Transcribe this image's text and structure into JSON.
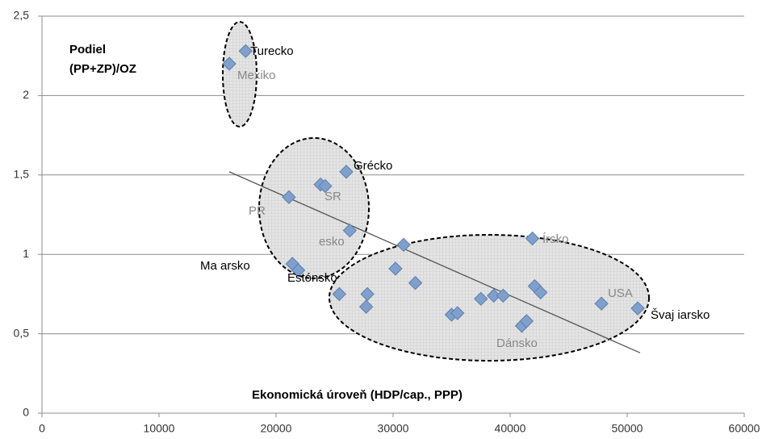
{
  "chart_data": {
    "type": "scatter",
    "y_label": "Podiel\n(PP+ZP)/OZ",
    "x_label": "Ekonomická úroveň (HDP/cap., PPP)",
    "color": "#7f9fcc",
    "x": [
      16000,
      17400,
      21100,
      23800,
      24200,
      26000,
      26300,
      21400,
      21900,
      25400,
      27800,
      27700,
      30900,
      30200,
      31900,
      35000,
      35500,
      37500,
      38600,
      39400,
      41000,
      41400,
      41900,
      42100,
      42600,
      47800,
      50900
    ],
    "values": [
      2.2,
      2.28,
      1.36,
      1.44,
      1.43,
      1.52,
      1.15,
      0.94,
      0.9,
      0.75,
      0.75,
      0.67,
      1.06,
      0.91,
      0.82,
      0.62,
      0.63,
      0.72,
      0.74,
      0.74,
      0.55,
      0.58,
      1.1,
      0.8,
      0.76,
      0.69,
      0.66
    ],
    "trendline": {
      "x": [
        16000,
        51100
      ],
      "values": [
        1.52,
        0.38
      ]
    },
    "xlim": [
      0,
      60000
    ],
    "ylim": [
      0,
      2.5
    ],
    "xticks": [
      0,
      10000,
      20000,
      30000,
      40000,
      50000,
      60000
    ],
    "yticks": [
      0,
      {
        "value": 0.5,
        "label": "0,5"
      },
      1,
      {
        "value": 1.5,
        "label": "1,5"
      },
      2,
      {
        "value": 2.5,
        "label": "2,5"
      }
    ],
    "grid": true,
    "annotations": [
      "Turecko",
      "Mexiko",
      "Grécko",
      "SR",
      "PR",
      "esko",
      "Ma arsko",
      "Estónsko",
      "Írsko",
      "USA",
      "Švaj iarsko",
      "Dánsko"
    ]
  }
}
